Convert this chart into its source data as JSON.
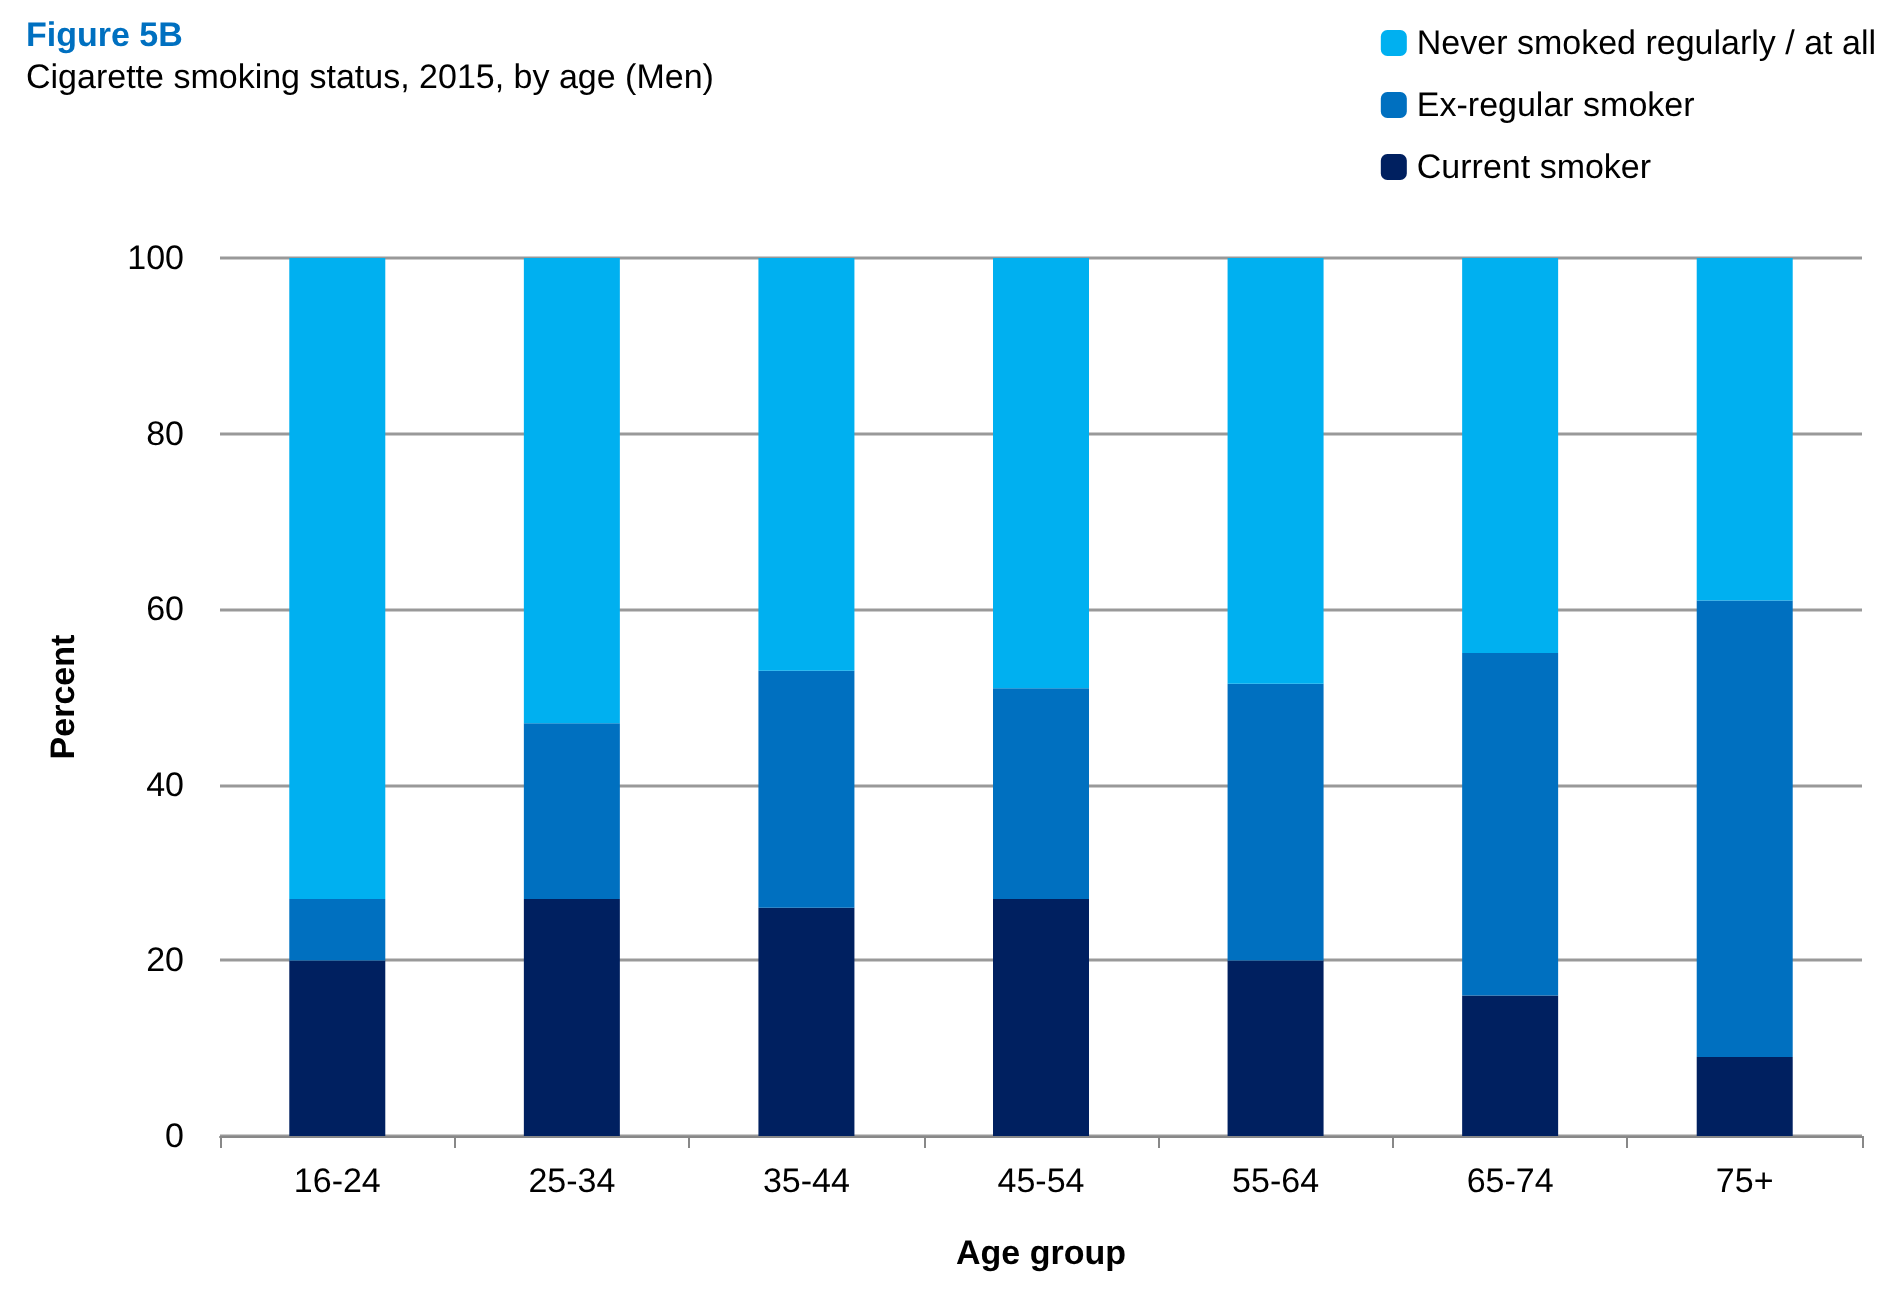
{
  "chart_data": {
    "type": "bar",
    "title": "Figure 5B",
    "subtitle": "Cigarette smoking status, 2015, by age (Men)",
    "xlabel": "Age group",
    "ylabel": "Percent",
    "categories": [
      "16-24",
      "25-34",
      "35-44",
      "45-54",
      "55-64",
      "65-74",
      "75+"
    ],
    "stacked": true,
    "series": [
      {
        "name": "Current smoker",
        "color": "#002060",
        "values": [
          20,
          27,
          26,
          27,
          20,
          16,
          9
        ]
      },
      {
        "name": "Ex-regular smoker",
        "color": "#0070c0",
        "values": [
          7,
          20,
          27,
          24,
          31.5,
          39,
          52
        ]
      },
      {
        "name": "Never smoked regularly / at all",
        "color": "#00b0f0",
        "values": [
          73,
          53,
          47,
          49,
          48.5,
          45,
          39
        ]
      }
    ],
    "ylim": [
      0,
      100
    ],
    "yticks": [
      0,
      20,
      40,
      60,
      80,
      100
    ],
    "grid": "y",
    "legend": "top right"
  }
}
